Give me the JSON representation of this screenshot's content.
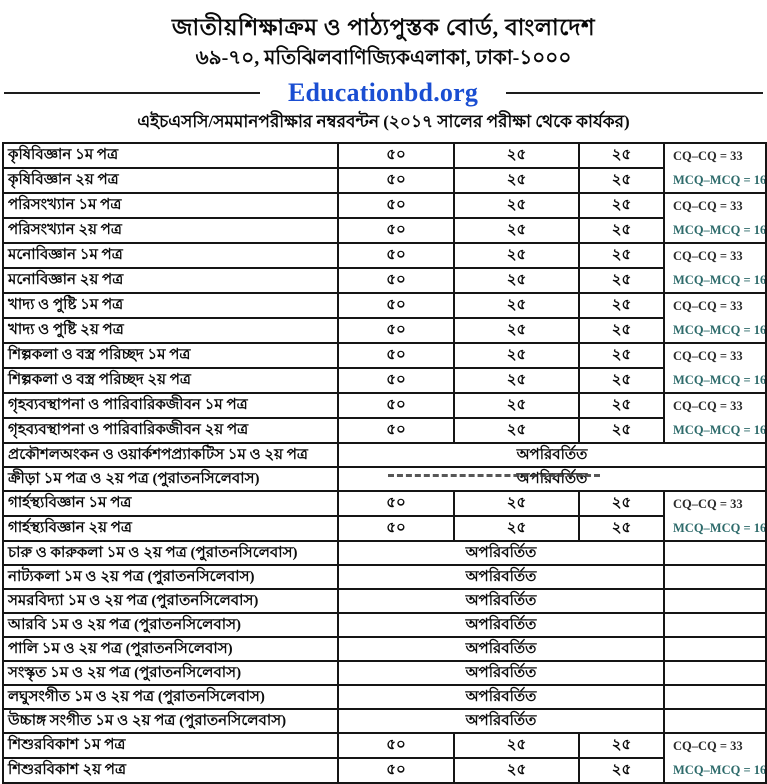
{
  "header": {
    "org_line": "জাতীয়শিক্ষাক্রম ও পাঠ্যপুস্তক বোর্ড, বাংলাদেশ",
    "address_line": "৬৯-৭০, মতিঝিলবাণিজ্যিকএলাকা, ঢাকা-১০০০",
    "watermark": "Educationbd.org",
    "watermark_color": "#1a4ed2",
    "subtitle": "এইচএসসি/সমমানপরীক্ষার নম্বরবন্টন (২০১৭ সালের পরীক্ষা থেকে কার্যকর)"
  },
  "table": {
    "unchanged_label": "অপরিবর্তিত",
    "rows": [
      {
        "subject": "কৃষিবিজ্ঞান ১ম পত্র",
        "type": "pair-first",
        "values": [
          "৫০",
          "২৫",
          "২৫"
        ],
        "notes": [
          "CQ–CQ = 33",
          "MCQ–MCQ = 16"
        ]
      },
      {
        "subject": "কৃষিবিজ্ঞান ২য় পত্র",
        "type": "pair-second",
        "values": [
          "৫০",
          "২৫",
          "২৫"
        ]
      },
      {
        "subject": "পরিসংখ্যান ১ম পত্র",
        "type": "pair-first",
        "values": [
          "৫০",
          "২৫",
          "২৫"
        ],
        "notes": [
          "CQ–CQ = 33",
          "MCQ–MCQ = 16"
        ]
      },
      {
        "subject": "পরিসংখ্যান ২য় পত্র",
        "type": "pair-second",
        "values": [
          "৫০",
          "২৫",
          "২৫"
        ]
      },
      {
        "subject": "মনোবিজ্ঞান ১ম পত্র",
        "type": "pair-first",
        "values": [
          "৫০",
          "২৫",
          "২৫"
        ],
        "notes": [
          "CQ–CQ = 33",
          "MCQ–MCQ = 16"
        ]
      },
      {
        "subject": "মনোবিজ্ঞান ২য় পত্র",
        "type": "pair-second",
        "values": [
          "৫০",
          "২৫",
          "২৫"
        ]
      },
      {
        "subject": "খাদ্য ও পুষ্টি ১ম পত্র",
        "type": "pair-first",
        "values": [
          "৫০",
          "২৫",
          "২৫"
        ],
        "notes": [
          "CQ–CQ = 33",
          "MCQ–MCQ = 16"
        ]
      },
      {
        "subject": "খাদ্য ও পুষ্টি ২য় পত্র",
        "type": "pair-second",
        "values": [
          "৫০",
          "২৫",
          "২৫"
        ]
      },
      {
        "subject": "শিল্পকলা ও বস্ত্র পরিচ্ছদ ১ম পত্র",
        "type": "pair-first",
        "values": [
          "৫০",
          "২৫",
          "২৫"
        ],
        "notes": [
          "CQ–CQ = 33",
          "MCQ–MCQ = 16"
        ]
      },
      {
        "subject": "শিল্পকলা ও বস্ত্র পরিচ্ছদ ২য় পত্র",
        "type": "pair-second",
        "values": [
          "৫০",
          "২৫",
          "২৫"
        ]
      },
      {
        "subject": "গৃহব্যবস্থাপনা ও পারিবারিকজীবন ১ম পত্র",
        "type": "pair-first",
        "values": [
          "৫০",
          "২৫",
          "২৫"
        ],
        "notes": [
          "CQ–CQ = 33",
          "MCQ–MCQ = 16"
        ]
      },
      {
        "subject": "গৃহব্যবস্থাপনা ও পারিবারিকজীবন ২য় পত্র",
        "type": "pair-second",
        "values": [
          "৫০",
          "২৫",
          "২৫"
        ]
      },
      {
        "subject": "প্রকৌশলঅংকন ও ওয়ার্কশপপ্র্যাকটিস ১ম ও ২য় পত্র",
        "type": "full-span",
        "status": "অপরিবর্তিত"
      },
      {
        "subject": "ক্রীড়া ১ম পত্র ও ২য় পত্র (পুরাতনসিলেবাস)",
        "type": "full-span",
        "status": "অপরিবর্তিত"
      },
      {
        "subject": "গার্হস্থ্যবিজ্ঞান ১ম পত্র",
        "type": "pair-first",
        "values": [
          "৫০",
          "২৫",
          "২৫"
        ],
        "notes": [
          "CQ–CQ = 33",
          "MCQ–MCQ = 16"
        ]
      },
      {
        "subject": "গার্হস্থ্যবিজ্ঞান ২য় পত্র",
        "type": "pair-second",
        "values": [
          "৫০",
          "২৫",
          "২৫"
        ]
      },
      {
        "subject": "চারু ও কারুকলা ১ম ও ২য় পত্র (পুরাতনসিলেবাস)",
        "type": "values-span",
        "status": "অপরিবর্তিত"
      },
      {
        "subject": "নাট্যকলা ১ম ও ২য় পত্র (পুরাতনসিলেবাস)",
        "type": "values-span",
        "status": "অপরিবর্তিত"
      },
      {
        "subject": "সমরবিদ্যা ১ম ও ২য় পত্র (পুরাতনসিলেবাস)",
        "type": "values-span",
        "status": "অপরিবর্তিত"
      },
      {
        "subject": "আরবি ১ম ও ২য় পত্র (পুরাতনসিলেবাস)",
        "type": "values-span",
        "status": "অপরিবর্তিত"
      },
      {
        "subject": "পালি ১ম ও ২য় পত্র (পুরাতনসিলেবাস)",
        "type": "values-span",
        "status": "অপরিবর্তিত"
      },
      {
        "subject": "সংস্কৃত ১ম ও ২য় পত্র  (পুরাতনসিলেবাস)",
        "type": "values-span",
        "status": "অপরিবর্তিত"
      },
      {
        "subject": "লঘুসংগীত ১ম ও ২য় পত্র (পুরাতনসিলেবাস)",
        "type": "values-span",
        "status": "অপরিবর্তিত"
      },
      {
        "subject": "উচ্চাঙ্গ সংগীত ১ম ও ২য় পত্র  (পুরাতনসিলেবাস)",
        "type": "values-span",
        "status": "অপরিবর্তিত"
      },
      {
        "subject": "শিশুরবিকাশ ১ম পত্র",
        "type": "pair-first",
        "values": [
          "৫০",
          "২৫",
          "২৫"
        ],
        "notes": [
          "CQ–CQ = 33",
          "MCQ–MCQ = 16"
        ]
      },
      {
        "subject": "শিশুরবিকাশ ২য় পত্র",
        "type": "pair-second",
        "values": [
          "৫০",
          "২৫",
          "২৫"
        ]
      }
    ]
  }
}
